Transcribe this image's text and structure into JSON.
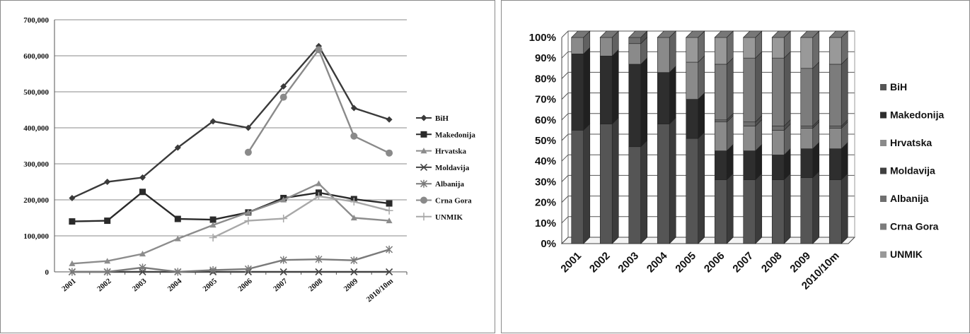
{
  "chart_data": [
    {
      "type": "line",
      "categories": [
        "2001",
        "2002",
        "2003",
        "2004",
        "2005",
        "2006",
        "2007",
        "2008",
        "2009",
        "2010/10m"
      ],
      "ylim": [
        0,
        700000
      ],
      "yticks": [
        "0",
        "100,000",
        "200,000",
        "300,000",
        "400,000",
        "500,000",
        "600,000",
        "700,000"
      ],
      "ytick_values": [
        0,
        100000,
        200000,
        300000,
        400000,
        500000,
        600000,
        700000
      ],
      "grid": true,
      "legend_position": "right",
      "series": [
        {
          "name": "BiH",
          "marker": "diamond",
          "color": "#3a3a3a",
          "values": [
            205000,
            250000,
            262000,
            345000,
            418000,
            400000,
            515000,
            627000,
            455000,
            423000
          ]
        },
        {
          "name": "Makedonija",
          "marker": "square",
          "color": "#2a2a2a",
          "values": [
            140000,
            142000,
            222000,
            147000,
            145000,
            165000,
            205000,
            220000,
            202000,
            190000
          ]
        },
        {
          "name": "Hrvatska",
          "marker": "triangle",
          "color": "#8c8c8c",
          "values": [
            23000,
            30000,
            50000,
            92000,
            130000,
            165000,
            200000,
            245000,
            150000,
            142000
          ]
        },
        {
          "name": "Moldavija",
          "marker": "x",
          "color": "#444444",
          "values": [
            0,
            0,
            0,
            0,
            0,
            0,
            0,
            0,
            0,
            0
          ]
        },
        {
          "name": "Albanija",
          "marker": "star",
          "color": "#7a7a7a",
          "values": [
            0,
            0,
            12000,
            0,
            5000,
            8000,
            33000,
            35000,
            32000,
            62000
          ]
        },
        {
          "name": "Crna Gora",
          "marker": "circle",
          "color": "#8a8a8a",
          "values": [
            null,
            null,
            null,
            null,
            null,
            332000,
            485000,
            617000,
            377000,
            330000
          ]
        },
        {
          "name": "UNMIK",
          "marker": "plus",
          "color": "#a8a8a8",
          "values": [
            null,
            null,
            null,
            null,
            95000,
            142000,
            148000,
            210000,
            195000,
            170000
          ]
        }
      ]
    },
    {
      "type": "bar",
      "stacked": "percent",
      "categories": [
        "2001",
        "2002",
        "2003",
        "2004",
        "2005",
        "2006",
        "2007",
        "2008",
        "2009",
        "2010/10m"
      ],
      "ylim": [
        0,
        100
      ],
      "yticks": [
        "0%",
        "10%",
        "20%",
        "30%",
        "40%",
        "50%",
        "60%",
        "70%",
        "80%",
        "90%",
        "100%"
      ],
      "ytick_values": [
        0,
        10,
        20,
        30,
        40,
        50,
        60,
        70,
        80,
        90,
        100
      ],
      "grid": true,
      "legend_position": "right",
      "series": [
        {
          "name": "BiH",
          "color": "#555555",
          "values": [
            55,
            58,
            47,
            58,
            51,
            31,
            31,
            31,
            32,
            31
          ]
        },
        {
          "name": "Makedonija",
          "color": "#2e2e2e",
          "values": [
            37,
            33,
            40,
            25,
            19,
            14,
            14,
            12,
            14,
            15
          ]
        },
        {
          "name": "Hrvatska",
          "color": "#8a8a8a",
          "values": [
            8,
            9,
            10,
            17,
            18,
            14,
            12,
            12,
            10,
            10
          ]
        },
        {
          "name": "Moldavija",
          "color": "#404040",
          "values": [
            0,
            0,
            0,
            0,
            0,
            0,
            0,
            0,
            0,
            0
          ]
        },
        {
          "name": "Albanija",
          "color": "#6f6f6f",
          "values": [
            0,
            0,
            3,
            0,
            0,
            1,
            2,
            2,
            1,
            1
          ]
        },
        {
          "name": "Crna Gora",
          "color": "#7c7c7c",
          "values": [
            0,
            0,
            0,
            0,
            0,
            27,
            31,
            33,
            28,
            30
          ]
        },
        {
          "name": "UNMIK",
          "color": "#999999",
          "values": [
            0,
            0,
            0,
            0,
            12,
            13,
            10,
            10,
            15,
            13
          ]
        }
      ]
    }
  ]
}
